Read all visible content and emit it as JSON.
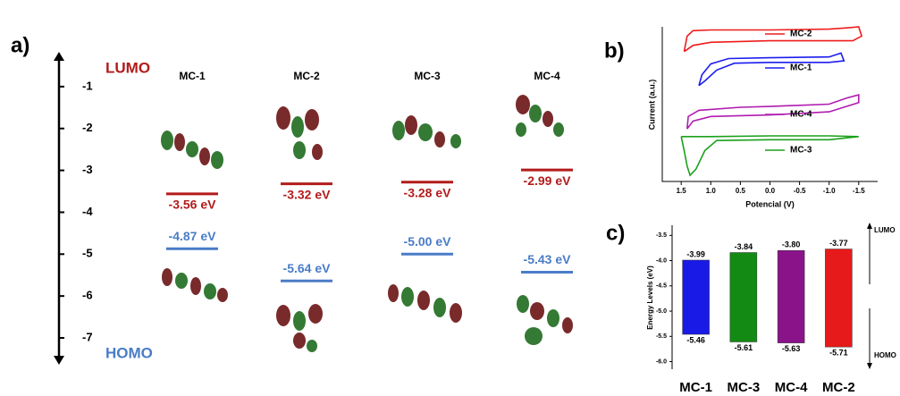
{
  "chart_data": [
    {
      "type": "levels",
      "panel_label": "a)",
      "categories": [
        "MC-1",
        "MC-2",
        "MC-3",
        "MC-4"
      ],
      "series": [
        {
          "name": "LUMO",
          "color": "#b31b1b",
          "values": [
            -3.56,
            -3.32,
            -3.28,
            -2.99
          ],
          "value_labels": [
            "-3.56 eV",
            "-3.32 eV",
            "-3.28 eV",
            "-2.99 eV"
          ]
        },
        {
          "name": "HOMO",
          "color": "#4a7cc7",
          "values": [
            -4.87,
            -5.64,
            -5.0,
            -5.43
          ],
          "value_labels": [
            "-4.87 eV",
            "-5.64 eV",
            "-5.00 eV",
            "-5.43 eV"
          ]
        }
      ],
      "ylim": [
        -0.17,
        -7.64
      ],
      "yticks": [
        -1,
        -2,
        -3,
        -4,
        -5,
        -6,
        -7
      ]
    },
    {
      "type": "line",
      "panel_label": "b)",
      "xlabel": "Potencial (V)",
      "ylabel": "Current (a.u.)",
      "xlim": [
        1.82,
        -1.82
      ],
      "xticks": [
        1.5,
        {
          "value": 1,
          "label": "1.0"
        },
        0.5,
        {
          "value": 0,
          "label": "0.0"
        },
        -0.5,
        {
          "value": -1,
          "label": "-1.0"
        },
        -1.5
      ],
      "ylim": [
        0,
        10
      ],
      "series": [
        {
          "name": "MC-2",
          "color": "#ee1c1c",
          "x": [
            1.45,
            1.4,
            1.3,
            1.0,
            0,
            -1.0,
            -1.35,
            -1.5,
            -1.55,
            -1.4,
            -1.0,
            0,
            1.0,
            1.3,
            1.45
          ],
          "values": [
            8.4,
            9.4,
            9.75,
            9.8,
            9.8,
            9.85,
            9.95,
            10.0,
            9.4,
            9.1,
            9.1,
            9.1,
            9.0,
            8.8,
            8.4
          ]
        },
        {
          "name": "MC-1",
          "color": "#1c1cee",
          "x": [
            1.2,
            1.15,
            1.0,
            0.7,
            0,
            -1.0,
            -1.2,
            -1.25,
            -1.0,
            0,
            0.6,
            0.9,
            1.1,
            1.2
          ],
          "values": [
            6.2,
            6.9,
            7.6,
            7.95,
            8.0,
            8.05,
            8.3,
            7.8,
            7.7,
            7.7,
            7.65,
            7.2,
            6.5,
            6.2
          ]
        },
        {
          "name": "MC-4",
          "color": "#b01cb0",
          "x": [
            1.4,
            1.38,
            1.2,
            0.5,
            0,
            -1.0,
            -1.3,
            -1.5,
            -1.5,
            -1.0,
            0,
            1.0,
            1.3,
            1.4
          ],
          "values": [
            3.4,
            4.2,
            4.6,
            4.8,
            4.85,
            5.0,
            5.4,
            5.6,
            5.1,
            4.5,
            4.3,
            4.2,
            3.9,
            3.4
          ]
        },
        {
          "name": "MC-3",
          "color": "#1ca01c",
          "x": [
            1.5,
            1.45,
            1.4,
            1.35,
            1.25,
            1.1,
            0.9,
            0,
            -1.0,
            -1.5,
            -1.0,
            0,
            1.0,
            1.5
          ],
          "values": [
            2.9,
            2.0,
            1.0,
            0.4,
            0.8,
            2.0,
            2.65,
            2.7,
            2.7,
            2.9,
            2.95,
            2.95,
            2.9,
            2.9
          ]
        }
      ]
    },
    {
      "type": "floating_bar",
      "panel_label": "c)",
      "ylabel": "Energy Levels (eV)",
      "categories": [
        "MC-1",
        "MC-3",
        "MC-4",
        "MC-2"
      ],
      "colors": [
        "#1a1ae6",
        "#138a13",
        "#8a138a",
        "#e61a1a"
      ],
      "series": [
        {
          "name": "LUMO",
          "values": [
            -3.99,
            -3.84,
            -3.8,
            -3.77
          ],
          "value_labels": [
            "-3.99",
            "-3.84",
            "-3.80",
            "-3.77"
          ]
        },
        {
          "name": "HOMO",
          "values": [
            -5.46,
            -5.61,
            -5.63,
            -5.71
          ],
          "value_labels": [
            "-5.46",
            "-5.61",
            "-5.63",
            "-5.71"
          ]
        }
      ],
      "ylim": [
        -3.3,
        -6.15
      ],
      "yticks": [
        -3.5,
        {
          "value": -4,
          "label": "-4.0"
        },
        -4.5,
        {
          "value": -5,
          "label": "-5.0"
        },
        -5.5,
        {
          "value": -6,
          "label": "-6.0"
        }
      ]
    }
  ]
}
